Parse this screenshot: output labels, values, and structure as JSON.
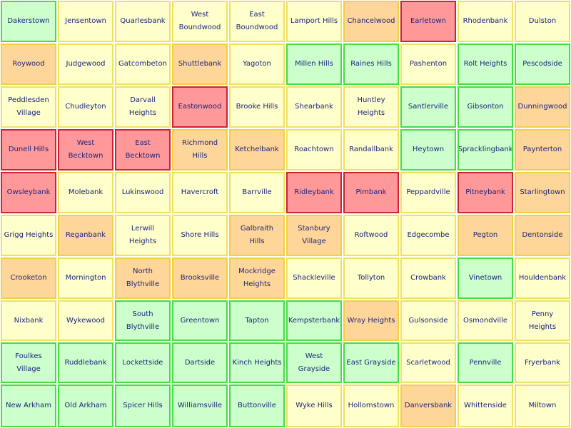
{
  "colors": {
    "green": {
      "fill": "#ccffcc",
      "border": "#44dd44"
    },
    "yellow": {
      "fill": "#ffffcc",
      "border": "#f0e060"
    },
    "orange": {
      "fill": "#ffd699",
      "border": "#f0d040"
    },
    "red": {
      "fill": "#ff9999",
      "border": "#cc2233"
    },
    "text": "#1a237e"
  },
  "rows": [
    [
      {
        "label": "Dakerstown",
        "status": "green"
      },
      {
        "label": "Jensentown",
        "status": "yellow"
      },
      {
        "label": "Quarlesbank",
        "status": "yellow"
      },
      {
        "label": "West Boundwood",
        "status": "yellow"
      },
      {
        "label": "East Boundwood",
        "status": "yellow"
      },
      {
        "label": "Lamport Hills",
        "status": "yellow"
      },
      {
        "label": "Chancelwood",
        "status": "orange"
      },
      {
        "label": "Earletown",
        "status": "red"
      },
      {
        "label": "Rhodenbank",
        "status": "yellow"
      },
      {
        "label": "Dulston",
        "status": "yellow"
      }
    ],
    [
      {
        "label": "Roywood",
        "status": "orange"
      },
      {
        "label": "Judgewood",
        "status": "yellow"
      },
      {
        "label": "Gatcombeton",
        "status": "yellow"
      },
      {
        "label": "Shuttlebank",
        "status": "orange"
      },
      {
        "label": "Yagoton",
        "status": "yellow"
      },
      {
        "label": "Millen Hills",
        "status": "green"
      },
      {
        "label": "Raines Hills",
        "status": "green"
      },
      {
        "label": "Pashenton",
        "status": "yellow"
      },
      {
        "label": "Rolt Heights",
        "status": "green"
      },
      {
        "label": "Pescodside",
        "status": "green"
      }
    ],
    [
      {
        "label": "Peddlesden Village",
        "status": "yellow"
      },
      {
        "label": "Chudleyton",
        "status": "yellow"
      },
      {
        "label": "Darvall Heights",
        "status": "yellow"
      },
      {
        "label": "Eastonwood",
        "status": "red"
      },
      {
        "label": "Brooke Hills",
        "status": "yellow"
      },
      {
        "label": "Shearbank",
        "status": "yellow"
      },
      {
        "label": "Huntley Heights",
        "status": "yellow"
      },
      {
        "label": "Santlerville",
        "status": "green"
      },
      {
        "label": "Gibsonton",
        "status": "green"
      },
      {
        "label": "Dunningwood",
        "status": "orange"
      }
    ],
    [
      {
        "label": "Dunell Hills",
        "status": "red"
      },
      {
        "label": "West Becktown",
        "status": "red"
      },
      {
        "label": "East Becktown",
        "status": "red"
      },
      {
        "label": "Richmond Hills",
        "status": "orange"
      },
      {
        "label": "Ketchelbank",
        "status": "orange"
      },
      {
        "label": "Roachtown",
        "status": "yellow"
      },
      {
        "label": "Randallbank",
        "status": "yellow"
      },
      {
        "label": "Heytown",
        "status": "green"
      },
      {
        "label": "Spracklingbank",
        "status": "green"
      },
      {
        "label": "Paynterton",
        "status": "orange"
      }
    ],
    [
      {
        "label": "Owsleybank",
        "status": "red"
      },
      {
        "label": "Molebank",
        "status": "yellow"
      },
      {
        "label": "Lukinswood",
        "status": "yellow"
      },
      {
        "label": "Havercroft",
        "status": "yellow"
      },
      {
        "label": "Barrville",
        "status": "yellow"
      },
      {
        "label": "Ridleybank",
        "status": "red"
      },
      {
        "label": "Pimbank",
        "status": "red"
      },
      {
        "label": "Peppardville",
        "status": "yellow"
      },
      {
        "label": "Pitneybank",
        "status": "red"
      },
      {
        "label": "Starlingtown",
        "status": "orange"
      }
    ],
    [
      {
        "label": "Grigg Heights",
        "status": "yellow"
      },
      {
        "label": "Reganbank",
        "status": "orange"
      },
      {
        "label": "Lerwill Heights",
        "status": "yellow"
      },
      {
        "label": "Shore Hills",
        "status": "yellow"
      },
      {
        "label": "Galbraith Hills",
        "status": "orange"
      },
      {
        "label": "Stanbury Village",
        "status": "orange"
      },
      {
        "label": "Roftwood",
        "status": "yellow"
      },
      {
        "label": "Edgecombe",
        "status": "yellow"
      },
      {
        "label": "Pegton",
        "status": "orange"
      },
      {
        "label": "Dentonside",
        "status": "orange"
      }
    ],
    [
      {
        "label": "Crooketon",
        "status": "orange"
      },
      {
        "label": "Mornington",
        "status": "yellow"
      },
      {
        "label": "North Blythville",
        "status": "orange"
      },
      {
        "label": "Brooksville",
        "status": "orange"
      },
      {
        "label": "Mockridge Heights",
        "status": "orange"
      },
      {
        "label": "Shackleville",
        "status": "yellow"
      },
      {
        "label": "Tollyton",
        "status": "yellow"
      },
      {
        "label": "Crowbank",
        "status": "yellow"
      },
      {
        "label": "Vinetown",
        "status": "green"
      },
      {
        "label": "Houldenbank",
        "status": "yellow"
      }
    ],
    [
      {
        "label": "Nixbank",
        "status": "yellow"
      },
      {
        "label": "Wykewood",
        "status": "yellow"
      },
      {
        "label": "South Blythville",
        "status": "green"
      },
      {
        "label": "Greentown",
        "status": "green"
      },
      {
        "label": "Tapton",
        "status": "green"
      },
      {
        "label": "Kempsterbank",
        "status": "green"
      },
      {
        "label": "Wray Heights",
        "status": "orange"
      },
      {
        "label": "Gulsonside",
        "status": "yellow"
      },
      {
        "label": "Osmondville",
        "status": "yellow"
      },
      {
        "label": "Penny Heights",
        "status": "yellow"
      }
    ],
    [
      {
        "label": "Foulkes Village",
        "status": "green"
      },
      {
        "label": "Ruddlebank",
        "status": "green"
      },
      {
        "label": "Lockettside",
        "status": "green"
      },
      {
        "label": "Dartside",
        "status": "green"
      },
      {
        "label": "Kinch Heights",
        "status": "green"
      },
      {
        "label": "West Grayside",
        "status": "green"
      },
      {
        "label": "East Grayside",
        "status": "green"
      },
      {
        "label": "Scarletwood",
        "status": "yellow"
      },
      {
        "label": "Pennville",
        "status": "green"
      },
      {
        "label": "Fryerbank",
        "status": "yellow"
      }
    ],
    [
      {
        "label": "New Arkham",
        "status": "green"
      },
      {
        "label": "Old Arkham",
        "status": "green"
      },
      {
        "label": "Spicer Hills",
        "status": "green"
      },
      {
        "label": "Williamsville",
        "status": "green"
      },
      {
        "label": "Buttonville",
        "status": "green"
      },
      {
        "label": "Wyke Hills",
        "status": "yellow"
      },
      {
        "label": "Hollomstown",
        "status": "yellow"
      },
      {
        "label": "Danversbank",
        "status": "orange"
      },
      {
        "label": "Whittenside",
        "status": "yellow"
      },
      {
        "label": "Miltown",
        "status": "yellow"
      }
    ]
  ]
}
